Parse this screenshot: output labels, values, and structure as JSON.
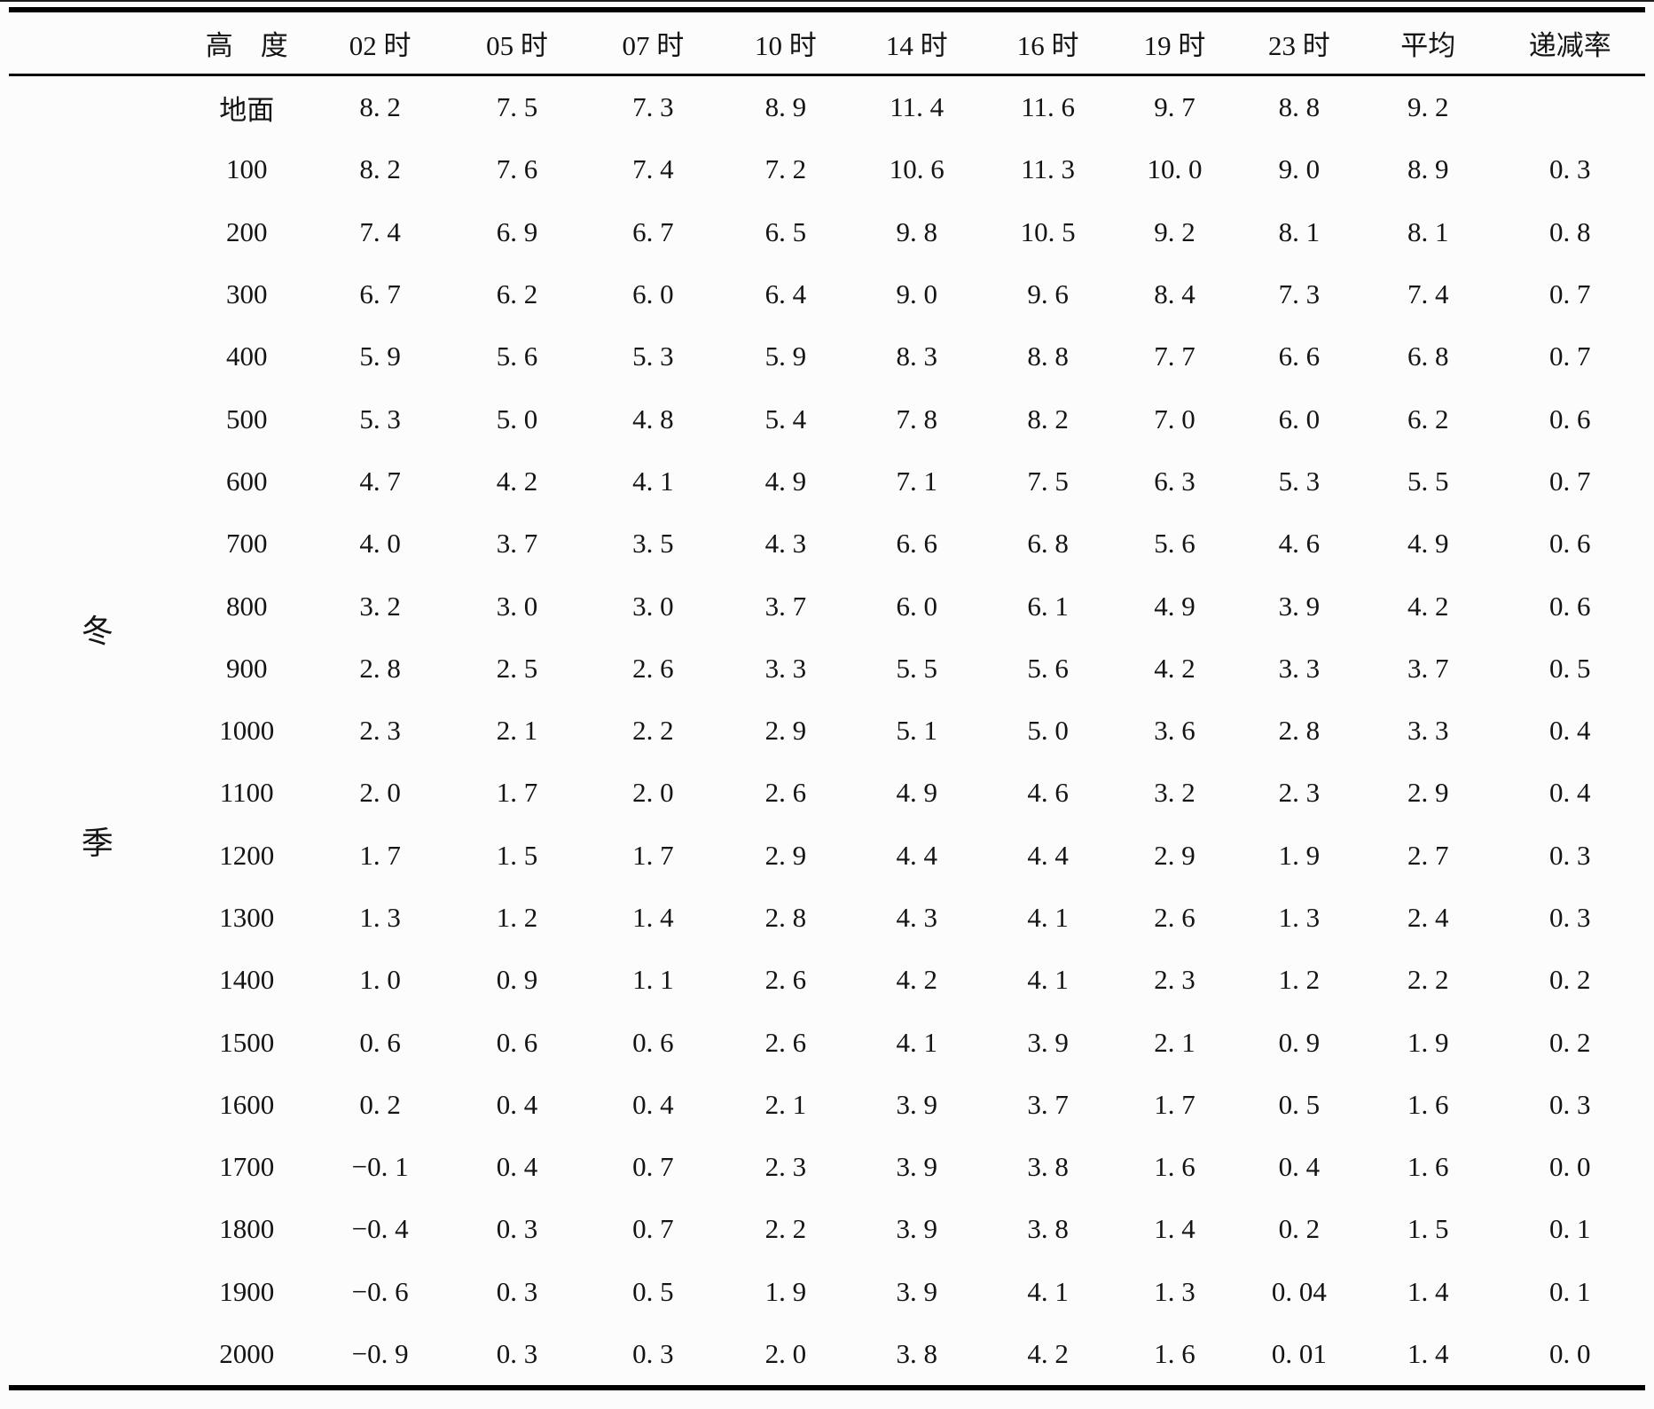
{
  "colors": {
    "background": "#fcfcfc",
    "text": "#141414",
    "rule": "#000000"
  },
  "table": {
    "season_label": [
      "冬",
      "季"
    ],
    "columns": [
      "",
      "高　度",
      "02 时",
      "05 时",
      "07 时",
      "10 时",
      "14 时",
      "16 时",
      "19 时",
      "23 时",
      "平均",
      "递减率"
    ],
    "rows": [
      {
        "height": "地面",
        "values": [
          "8. 2",
          "7. 5",
          "7. 3",
          "8. 9",
          "11. 4",
          "11. 6",
          "9. 7",
          "8. 8",
          "9. 2",
          ""
        ]
      },
      {
        "height": "100",
        "values": [
          "8. 2",
          "7. 6",
          "7. 4",
          "7. 2",
          "10. 6",
          "11. 3",
          "10. 0",
          "9. 0",
          "8. 9",
          "0. 3"
        ]
      },
      {
        "height": "200",
        "values": [
          "7. 4",
          "6. 9",
          "6. 7",
          "6. 5",
          "9. 8",
          "10. 5",
          "9. 2",
          "8. 1",
          "8. 1",
          "0. 8"
        ]
      },
      {
        "height": "300",
        "values": [
          "6. 7",
          "6. 2",
          "6. 0",
          "6. 4",
          "9. 0",
          "9. 6",
          "8. 4",
          "7. 3",
          "7. 4",
          "0. 7"
        ]
      },
      {
        "height": "400",
        "values": [
          "5. 9",
          "5. 6",
          "5. 3",
          "5. 9",
          "8. 3",
          "8. 8",
          "7. 7",
          "6. 6",
          "6. 8",
          "0. 7"
        ]
      },
      {
        "height": "500",
        "values": [
          "5. 3",
          "5. 0",
          "4. 8",
          "5. 4",
          "7. 8",
          "8. 2",
          "7. 0",
          "6. 0",
          "6. 2",
          "0. 6"
        ]
      },
      {
        "height": "600",
        "values": [
          "4. 7",
          "4. 2",
          "4. 1",
          "4. 9",
          "7. 1",
          "7. 5",
          "6. 3",
          "5. 3",
          "5. 5",
          "0. 7"
        ]
      },
      {
        "height": "700",
        "values": [
          "4. 0",
          "3. 7",
          "3. 5",
          "4. 3",
          "6. 6",
          "6. 8",
          "5. 6",
          "4. 6",
          "4. 9",
          "0. 6"
        ]
      },
      {
        "height": "800",
        "values": [
          "3. 2",
          "3. 0",
          "3. 0",
          "3. 7",
          "6. 0",
          "6. 1",
          "4. 9",
          "3. 9",
          "4. 2",
          "0. 6"
        ]
      },
      {
        "height": "900",
        "values": [
          "2. 8",
          "2. 5",
          "2. 6",
          "3. 3",
          "5. 5",
          "5. 6",
          "4. 2",
          "3. 3",
          "3. 7",
          "0. 5"
        ]
      },
      {
        "height": "1000",
        "values": [
          "2. 3",
          "2. 1",
          "2. 2",
          "2. 9",
          "5. 1",
          "5. 0",
          "3. 6",
          "2. 8",
          "3. 3",
          "0. 4"
        ]
      },
      {
        "height": "1100",
        "values": [
          "2. 0",
          "1. 7",
          "2. 0",
          "2. 6",
          "4. 9",
          "4. 6",
          "3. 2",
          "2. 3",
          "2. 9",
          "0. 4"
        ]
      },
      {
        "height": "1200",
        "values": [
          "1. 7",
          "1. 5",
          "1. 7",
          "2. 9",
          "4. 4",
          "4. 4",
          "2. 9",
          "1. 9",
          "2. 7",
          "0. 3"
        ]
      },
      {
        "height": "1300",
        "values": [
          "1. 3",
          "1. 2",
          "1. 4",
          "2. 8",
          "4. 3",
          "4. 1",
          "2. 6",
          "1. 3",
          "2. 4",
          "0. 3"
        ]
      },
      {
        "height": "1400",
        "values": [
          "1. 0",
          "0. 9",
          "1. 1",
          "2. 6",
          "4. 2",
          "4. 1",
          "2. 3",
          "1. 2",
          "2. 2",
          "0. 2"
        ]
      },
      {
        "height": "1500",
        "values": [
          "0. 6",
          "0. 6",
          "0. 6",
          "2. 6",
          "4. 1",
          "3. 9",
          "2. 1",
          "0. 9",
          "1. 9",
          "0. 2"
        ]
      },
      {
        "height": "1600",
        "values": [
          "0. 2",
          "0. 4",
          "0. 4",
          "2. 1",
          "3. 9",
          "3. 7",
          "1. 7",
          "0. 5",
          "1. 6",
          "0. 3"
        ]
      },
      {
        "height": "1700",
        "values": [
          "−0. 1",
          "0. 4",
          "0. 7",
          "2. 3",
          "3. 9",
          "3. 8",
          "1. 6",
          "0. 4",
          "1. 6",
          "0. 0"
        ]
      },
      {
        "height": "1800",
        "values": [
          "−0. 4",
          "0. 3",
          "0. 7",
          "2. 2",
          "3. 9",
          "3. 8",
          "1. 4",
          "0. 2",
          "1. 5",
          "0. 1"
        ]
      },
      {
        "height": "1900",
        "values": [
          "−0. 6",
          "0. 3",
          "0. 5",
          "1. 9",
          "3. 9",
          "4. 1",
          "1. 3",
          "0. 04",
          "1. 4",
          "0. 1"
        ]
      },
      {
        "height": "2000",
        "values": [
          "−0. 9",
          "0. 3",
          "0. 3",
          "2. 0",
          "3. 8",
          "4. 2",
          "1. 6",
          "0. 01",
          "1. 4",
          "0. 0"
        ]
      }
    ]
  },
  "chart_data": {
    "type": "table",
    "title": "",
    "row_group_label": "冬季",
    "row_header": "高度",
    "columns": [
      "02时",
      "05时",
      "07时",
      "10时",
      "14时",
      "16时",
      "19时",
      "23时",
      "平均",
      "递减率"
    ],
    "row_labels": [
      "地面",
      "100",
      "200",
      "300",
      "400",
      "500",
      "600",
      "700",
      "800",
      "900",
      "1000",
      "1100",
      "1200",
      "1300",
      "1400",
      "1500",
      "1600",
      "1700",
      "1800",
      "1900",
      "2000"
    ],
    "values": [
      [
        8.2,
        7.5,
        7.3,
        8.9,
        11.4,
        11.6,
        9.7,
        8.8,
        9.2,
        null
      ],
      [
        8.2,
        7.6,
        7.4,
        7.2,
        10.6,
        11.3,
        10.0,
        9.0,
        8.9,
        0.3
      ],
      [
        7.4,
        6.9,
        6.7,
        6.5,
        9.8,
        10.5,
        9.2,
        8.1,
        8.1,
        0.8
      ],
      [
        6.7,
        6.2,
        6.0,
        6.4,
        9.0,
        9.6,
        8.4,
        7.3,
        7.4,
        0.7
      ],
      [
        5.9,
        5.6,
        5.3,
        5.9,
        8.3,
        8.8,
        7.7,
        6.6,
        6.8,
        0.7
      ],
      [
        5.3,
        5.0,
        4.8,
        5.4,
        7.8,
        8.2,
        7.0,
        6.0,
        6.2,
        0.6
      ],
      [
        4.7,
        4.2,
        4.1,
        4.9,
        7.1,
        7.5,
        6.3,
        5.3,
        5.5,
        0.7
      ],
      [
        4.0,
        3.7,
        3.5,
        4.3,
        6.6,
        6.8,
        5.6,
        4.6,
        4.9,
        0.6
      ],
      [
        3.2,
        3.0,
        3.0,
        3.7,
        6.0,
        6.1,
        4.9,
        3.9,
        4.2,
        0.6
      ],
      [
        2.8,
        2.5,
        2.6,
        3.3,
        5.5,
        5.6,
        4.2,
        3.3,
        3.7,
        0.5
      ],
      [
        2.3,
        2.1,
        2.2,
        2.9,
        5.1,
        5.0,
        3.6,
        2.8,
        3.3,
        0.4
      ],
      [
        2.0,
        1.7,
        2.0,
        2.6,
        4.9,
        4.6,
        3.2,
        2.3,
        2.9,
        0.4
      ],
      [
        1.7,
        1.5,
        1.7,
        2.9,
        4.4,
        4.4,
        2.9,
        1.9,
        2.7,
        0.3
      ],
      [
        1.3,
        1.2,
        1.4,
        2.8,
        4.3,
        4.1,
        2.6,
        1.3,
        2.4,
        0.3
      ],
      [
        1.0,
        0.9,
        1.1,
        2.6,
        4.2,
        4.1,
        2.3,
        1.2,
        2.2,
        0.2
      ],
      [
        0.6,
        0.6,
        0.6,
        2.6,
        4.1,
        3.9,
        2.1,
        0.9,
        1.9,
        0.2
      ],
      [
        0.2,
        0.4,
        0.4,
        2.1,
        3.9,
        3.7,
        1.7,
        0.5,
        1.6,
        0.3
      ],
      [
        -0.1,
        0.4,
        0.7,
        2.3,
        3.9,
        3.8,
        1.6,
        0.4,
        1.6,
        0.0
      ],
      [
        -0.4,
        0.3,
        0.7,
        2.2,
        3.9,
        3.8,
        1.4,
        0.2,
        1.5,
        0.1
      ],
      [
        -0.6,
        0.3,
        0.5,
        1.9,
        3.9,
        4.1,
        1.3,
        0.04,
        1.4,
        0.1
      ],
      [
        -0.9,
        0.3,
        0.3,
        2.0,
        3.8,
        4.2,
        1.6,
        0.01,
        1.4,
        0.0
      ]
    ]
  }
}
